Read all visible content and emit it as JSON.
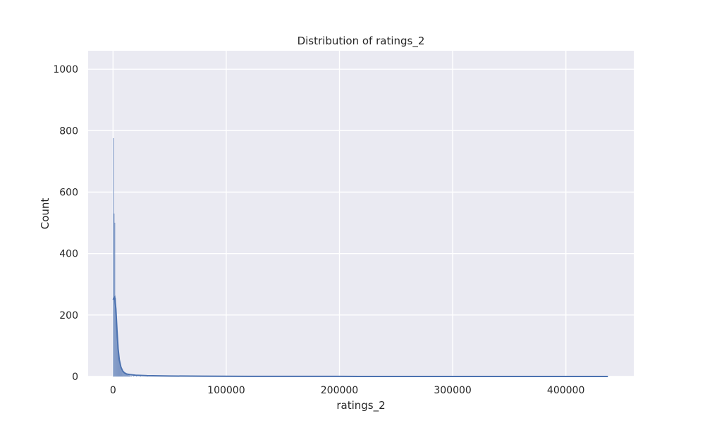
{
  "chart_data": {
    "type": "histogram",
    "title": "Distribution of ratings_2",
    "xlabel": "ratings_2",
    "ylabel": "Count",
    "xlim": [
      -22000,
      460000
    ],
    "ylim": [
      0,
      1060
    ],
    "xticks": [
      0,
      100000,
      200000,
      300000,
      400000
    ],
    "xtick_labels": [
      "0",
      "100000",
      "200000",
      "300000",
      "400000"
    ],
    "yticks": [
      0,
      200,
      400,
      600,
      800,
      1000
    ],
    "ytick_labels": [
      "0",
      "200",
      "400",
      "600",
      "800",
      "1000"
    ],
    "grid": true,
    "background": "#eaeaf2",
    "bar_color": "#4c72b0",
    "kde_color": "#4c72b0",
    "histogram": {
      "bin_width": 600,
      "bins": [
        {
          "x": 0,
          "count": 775
        },
        {
          "x": 600,
          "count": 530
        },
        {
          "x": 1200,
          "count": 500
        },
        {
          "x": 1800,
          "count": 255
        },
        {
          "x": 2400,
          "count": 210
        },
        {
          "x": 3000,
          "count": 150
        },
        {
          "x": 3600,
          "count": 110
        },
        {
          "x": 4200,
          "count": 85
        },
        {
          "x": 4800,
          "count": 65
        },
        {
          "x": 5400,
          "count": 50
        },
        {
          "x": 6000,
          "count": 40
        },
        {
          "x": 6600,
          "count": 32
        },
        {
          "x": 7200,
          "count": 26
        },
        {
          "x": 7800,
          "count": 20
        },
        {
          "x": 8400,
          "count": 16
        },
        {
          "x": 9000,
          "count": 13
        },
        {
          "x": 9600,
          "count": 10
        },
        {
          "x": 10200,
          "count": 8
        },
        {
          "x": 10800,
          "count": 7
        },
        {
          "x": 11400,
          "count": 6
        },
        {
          "x": 12000,
          "count": 5
        },
        {
          "x": 12600,
          "count": 4
        },
        {
          "x": 13200,
          "count": 4
        },
        {
          "x": 13800,
          "count": 3
        },
        {
          "x": 14400,
          "count": 3
        },
        {
          "x": 15000,
          "count": 2
        },
        {
          "x": 16200,
          "count": 2
        },
        {
          "x": 18000,
          "count": 2
        },
        {
          "x": 20400,
          "count": 1
        },
        {
          "x": 24000,
          "count": 1
        },
        {
          "x": 30000,
          "count": 1
        },
        {
          "x": 436800,
          "count": 1
        }
      ]
    },
    "kde": {
      "x": [
        0,
        1500,
        2500,
        3500,
        4500,
        5500,
        7000,
        8500,
        10000,
        12000,
        15000,
        20000,
        30000,
        50000,
        80000,
        120000,
        200000,
        300000,
        400000,
        437000
      ],
      "y": [
        250,
        258,
        220,
        150,
        90,
        55,
        30,
        18,
        12,
        8,
        6,
        4,
        2.5,
        1.5,
        0.8,
        0.4,
        0.15,
        0.05,
        0.02,
        0.01
      ]
    }
  }
}
